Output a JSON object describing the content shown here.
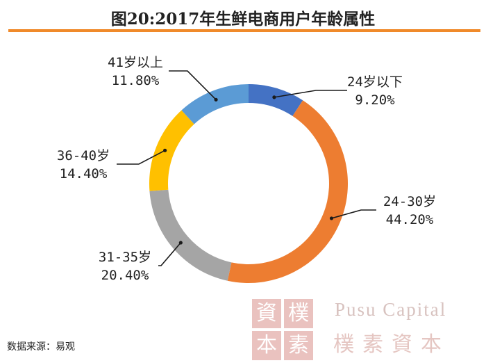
{
  "page": {
    "title": "图20:2017年生鲜电商用户年龄属性"
  },
  "source": "数据来源：易观",
  "watermark": {
    "en": "Pusu Capital",
    "cn": "樸素資本",
    "seal_chars": [
      "資",
      "樸",
      "本",
      "素"
    ]
  },
  "colors": {
    "accent": "#f08a2a"
  },
  "chart_data": {
    "type": "pie",
    "title": "图20:2017年生鲜电商用户年龄属性",
    "donut": true,
    "unit": "%",
    "slices": [
      {
        "name": "24岁以下",
        "value": 9.2,
        "label": "9.20%",
        "color": "#4472c4"
      },
      {
        "name": "24-30岁",
        "value": 44.2,
        "label": "44.20%",
        "color": "#ed7d31"
      },
      {
        "name": "31-35岁",
        "value": 20.4,
        "label": "20.40%",
        "color": "#a5a5a5"
      },
      {
        "name": "36-40岁",
        "value": 14.4,
        "label": "14.40%",
        "color": "#ffc000"
      },
      {
        "name": "41岁以上",
        "value": 11.8,
        "label": "11.80%",
        "color": "#5b9bd5"
      }
    ]
  }
}
